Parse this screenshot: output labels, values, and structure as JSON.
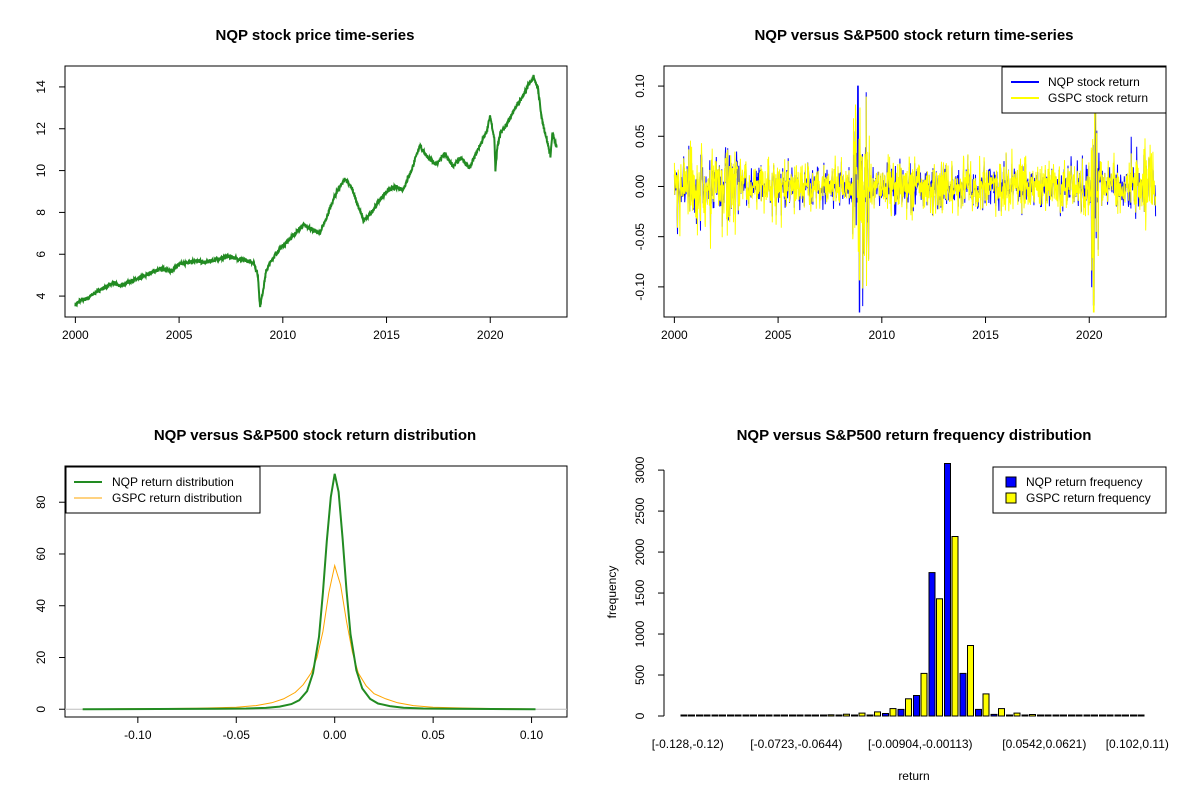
{
  "colors": {
    "price_line": "#228B22",
    "nqp_return": "#0000FF",
    "gspc_return": "#FFFF00",
    "nqp_density": "#228B22",
    "gspc_density": "#FFA500",
    "nqp_bars": "#0000FF",
    "gspc_bars": "#FFFF00",
    "baseline": "#BEBEBE"
  },
  "chart_data": [
    {
      "id": "price",
      "type": "line",
      "title": "NQP stock price time-series",
      "xlabel": "",
      "ylabel": "",
      "xlim": [
        1999.5,
        2023.7
      ],
      "ylim": [
        3.0,
        15.0
      ],
      "xticks": [
        2000,
        2005,
        2010,
        2015,
        2020
      ],
      "yticks": [
        4,
        6,
        8,
        10,
        12,
        14
      ],
      "series": [
        {
          "x": [
            2000.0,
            2000.3,
            2000.6,
            2001.0,
            2001.4,
            2001.8,
            2002.2,
            2002.6,
            2003.0,
            2003.4,
            2003.8,
            2004.2,
            2004.6,
            2005.0,
            2005.4,
            2005.8,
            2006.2,
            2006.6,
            2007.0,
            2007.4,
            2007.8,
            2008.2,
            2008.6,
            2008.8,
            2008.9,
            2009.0,
            2009.2,
            2009.5,
            2009.8,
            2010.2,
            2010.6,
            2011.0,
            2011.4,
            2011.8,
            2012.2,
            2012.6,
            2013.0,
            2013.3,
            2013.6,
            2013.9,
            2014.2,
            2014.6,
            2015.0,
            2015.4,
            2015.8,
            2016.2,
            2016.6,
            2017.0,
            2017.4,
            2017.8,
            2018.2,
            2018.6,
            2019.0,
            2019.4,
            2019.8,
            2020.0,
            2020.2,
            2020.25,
            2020.35,
            2020.5,
            2020.8,
            2021.2,
            2021.6,
            2021.9,
            2022.1,
            2022.3,
            2022.5,
            2022.7,
            2022.9,
            2023.0,
            2023.2
          ],
          "y": [
            3.6,
            3.8,
            3.9,
            4.2,
            4.4,
            4.6,
            4.5,
            4.7,
            4.8,
            5.0,
            5.2,
            5.3,
            5.2,
            5.5,
            5.6,
            5.7,
            5.6,
            5.7,
            5.8,
            5.9,
            5.8,
            5.7,
            5.6,
            5.0,
            3.5,
            4.0,
            5.2,
            5.8,
            6.2,
            6.6,
            7.0,
            7.4,
            7.2,
            7.0,
            8.0,
            9.0,
            9.6,
            9.2,
            8.4,
            7.6,
            7.9,
            8.5,
            9.0,
            9.2,
            9.1,
            10.0,
            11.2,
            10.6,
            10.3,
            10.8,
            10.2,
            10.6,
            10.1,
            11.0,
            11.8,
            12.6,
            11.5,
            10.0,
            11.2,
            11.8,
            12.2,
            13.0,
            13.6,
            14.2,
            14.5,
            13.9,
            12.4,
            11.6,
            10.7,
            11.8,
            11.1
          ]
        }
      ]
    },
    {
      "id": "returns",
      "type": "line",
      "title": "NQP versus S&P500 stock return time-series",
      "xlabel": "",
      "ylabel": "",
      "xlim": [
        1999.5,
        2023.7
      ],
      "ylim": [
        -0.13,
        0.12
      ],
      "xticks": [
        2000,
        2005,
        2010,
        2015,
        2020
      ],
      "yticks": [
        -0.1,
        -0.05,
        0.0,
        0.05,
        0.1
      ],
      "ytick_labels": [
        "-0.10",
        "-0.05",
        "0.00",
        "0.05",
        "0.10"
      ],
      "legend": {
        "placement": "top-right",
        "entries": [
          "NQP stock return",
          "GSPC stock return"
        ]
      },
      "series": [
        {
          "name": "NQP stock return"
        },
        {
          "name": "GSPC stock return"
        }
      ],
      "x_range": [
        2000.0,
        2023.2
      ]
    },
    {
      "id": "density",
      "type": "line",
      "title": "NQP versus S&P500 stock return distribution",
      "xlabel": "",
      "ylabel": "",
      "xlim": [
        -0.137,
        0.118
      ],
      "ylim": [
        -3,
        94
      ],
      "xticks": [
        -0.1,
        -0.05,
        0.0,
        0.05,
        0.1
      ],
      "xtick_labels": [
        "-0.10",
        "-0.05",
        "0.00",
        "0.05",
        "0.10"
      ],
      "yticks": [
        0,
        20,
        40,
        60,
        80
      ],
      "legend": {
        "placement": "top-left",
        "entries": [
          "NQP return distribution",
          "GSPC return distribution"
        ]
      },
      "series": [
        {
          "name": "NQP return distribution",
          "x": [
            -0.128,
            -0.09,
            -0.06,
            -0.045,
            -0.035,
            -0.028,
            -0.022,
            -0.018,
            -0.014,
            -0.011,
            -0.008,
            -0.006,
            -0.004,
            -0.002,
            0.0,
            0.002,
            0.004,
            0.006,
            0.008,
            0.011,
            0.014,
            0.018,
            0.022,
            0.028,
            0.035,
            0.045,
            0.06,
            0.08,
            0.102
          ],
          "y": [
            0,
            0.1,
            0.2,
            0.3,
            0.5,
            1.0,
            2.0,
            3.5,
            7,
            14,
            28,
            45,
            65,
            82,
            91,
            84,
            66,
            46,
            29,
            15,
            8,
            4,
            2.2,
            1.2,
            0.6,
            0.3,
            0.2,
            0.1,
            0
          ]
        },
        {
          "name": "GSPC return distribution",
          "x": [
            -0.128,
            -0.1,
            -0.07,
            -0.05,
            -0.04,
            -0.032,
            -0.026,
            -0.02,
            -0.016,
            -0.012,
            -0.009,
            -0.006,
            -0.003,
            0.0,
            0.003,
            0.006,
            0.009,
            0.012,
            0.016,
            0.02,
            0.026,
            0.032,
            0.04,
            0.05,
            0.07,
            0.1
          ],
          "y": [
            0,
            0.2,
            0.4,
            0.8,
            1.4,
            2.5,
            4,
            6.5,
            9.5,
            14,
            20,
            30,
            45,
            55.5,
            48,
            34,
            22,
            14,
            9,
            6,
            4,
            2.5,
            1.4,
            0.8,
            0.4,
            0.1
          ]
        }
      ]
    },
    {
      "id": "frequency",
      "type": "bar",
      "title": "NQP versus S&P500 return frequency distribution",
      "xlabel": "return",
      "ylabel": "frequency",
      "ylim": [
        0,
        3050
      ],
      "yticks": [
        0,
        500,
        1000,
        1500,
        2000,
        2500,
        3000
      ],
      "legend": {
        "placement": "top-right",
        "entries": [
          "NQP return frequency",
          "GSPC return frequency"
        ]
      },
      "tick_labels": [
        {
          "index": 0,
          "label": "[-0.128,-0.12)"
        },
        {
          "index": 7,
          "label": "[-0.0723,-0.0644)"
        },
        {
          "index": 15,
          "label": "[-0.00904,-0.00113)"
        },
        {
          "index": 23,
          "label": "[0.0542,0.0621)"
        },
        {
          "index": 29,
          "label": "[0.102,0.11)"
        }
      ],
      "series": [
        {
          "name": "NQP return frequency",
          "values": [
            1,
            1,
            1,
            1,
            1,
            2,
            2,
            3,
            3,
            4,
            6,
            8,
            12,
            30,
            80,
            250,
            1750,
            3080,
            520,
            80,
            20,
            10,
            8,
            6,
            5,
            3,
            2,
            2,
            1,
            1
          ]
        },
        {
          "name": "GSPC return frequency",
          "values": [
            1,
            1,
            1,
            1,
            2,
            3,
            4,
            6,
            10,
            15,
            22,
            35,
            50,
            90,
            210,
            520,
            1430,
            2190,
            860,
            270,
            90,
            35,
            18,
            12,
            8,
            5,
            3,
            2,
            1,
            1
          ]
        }
      ]
    }
  ]
}
